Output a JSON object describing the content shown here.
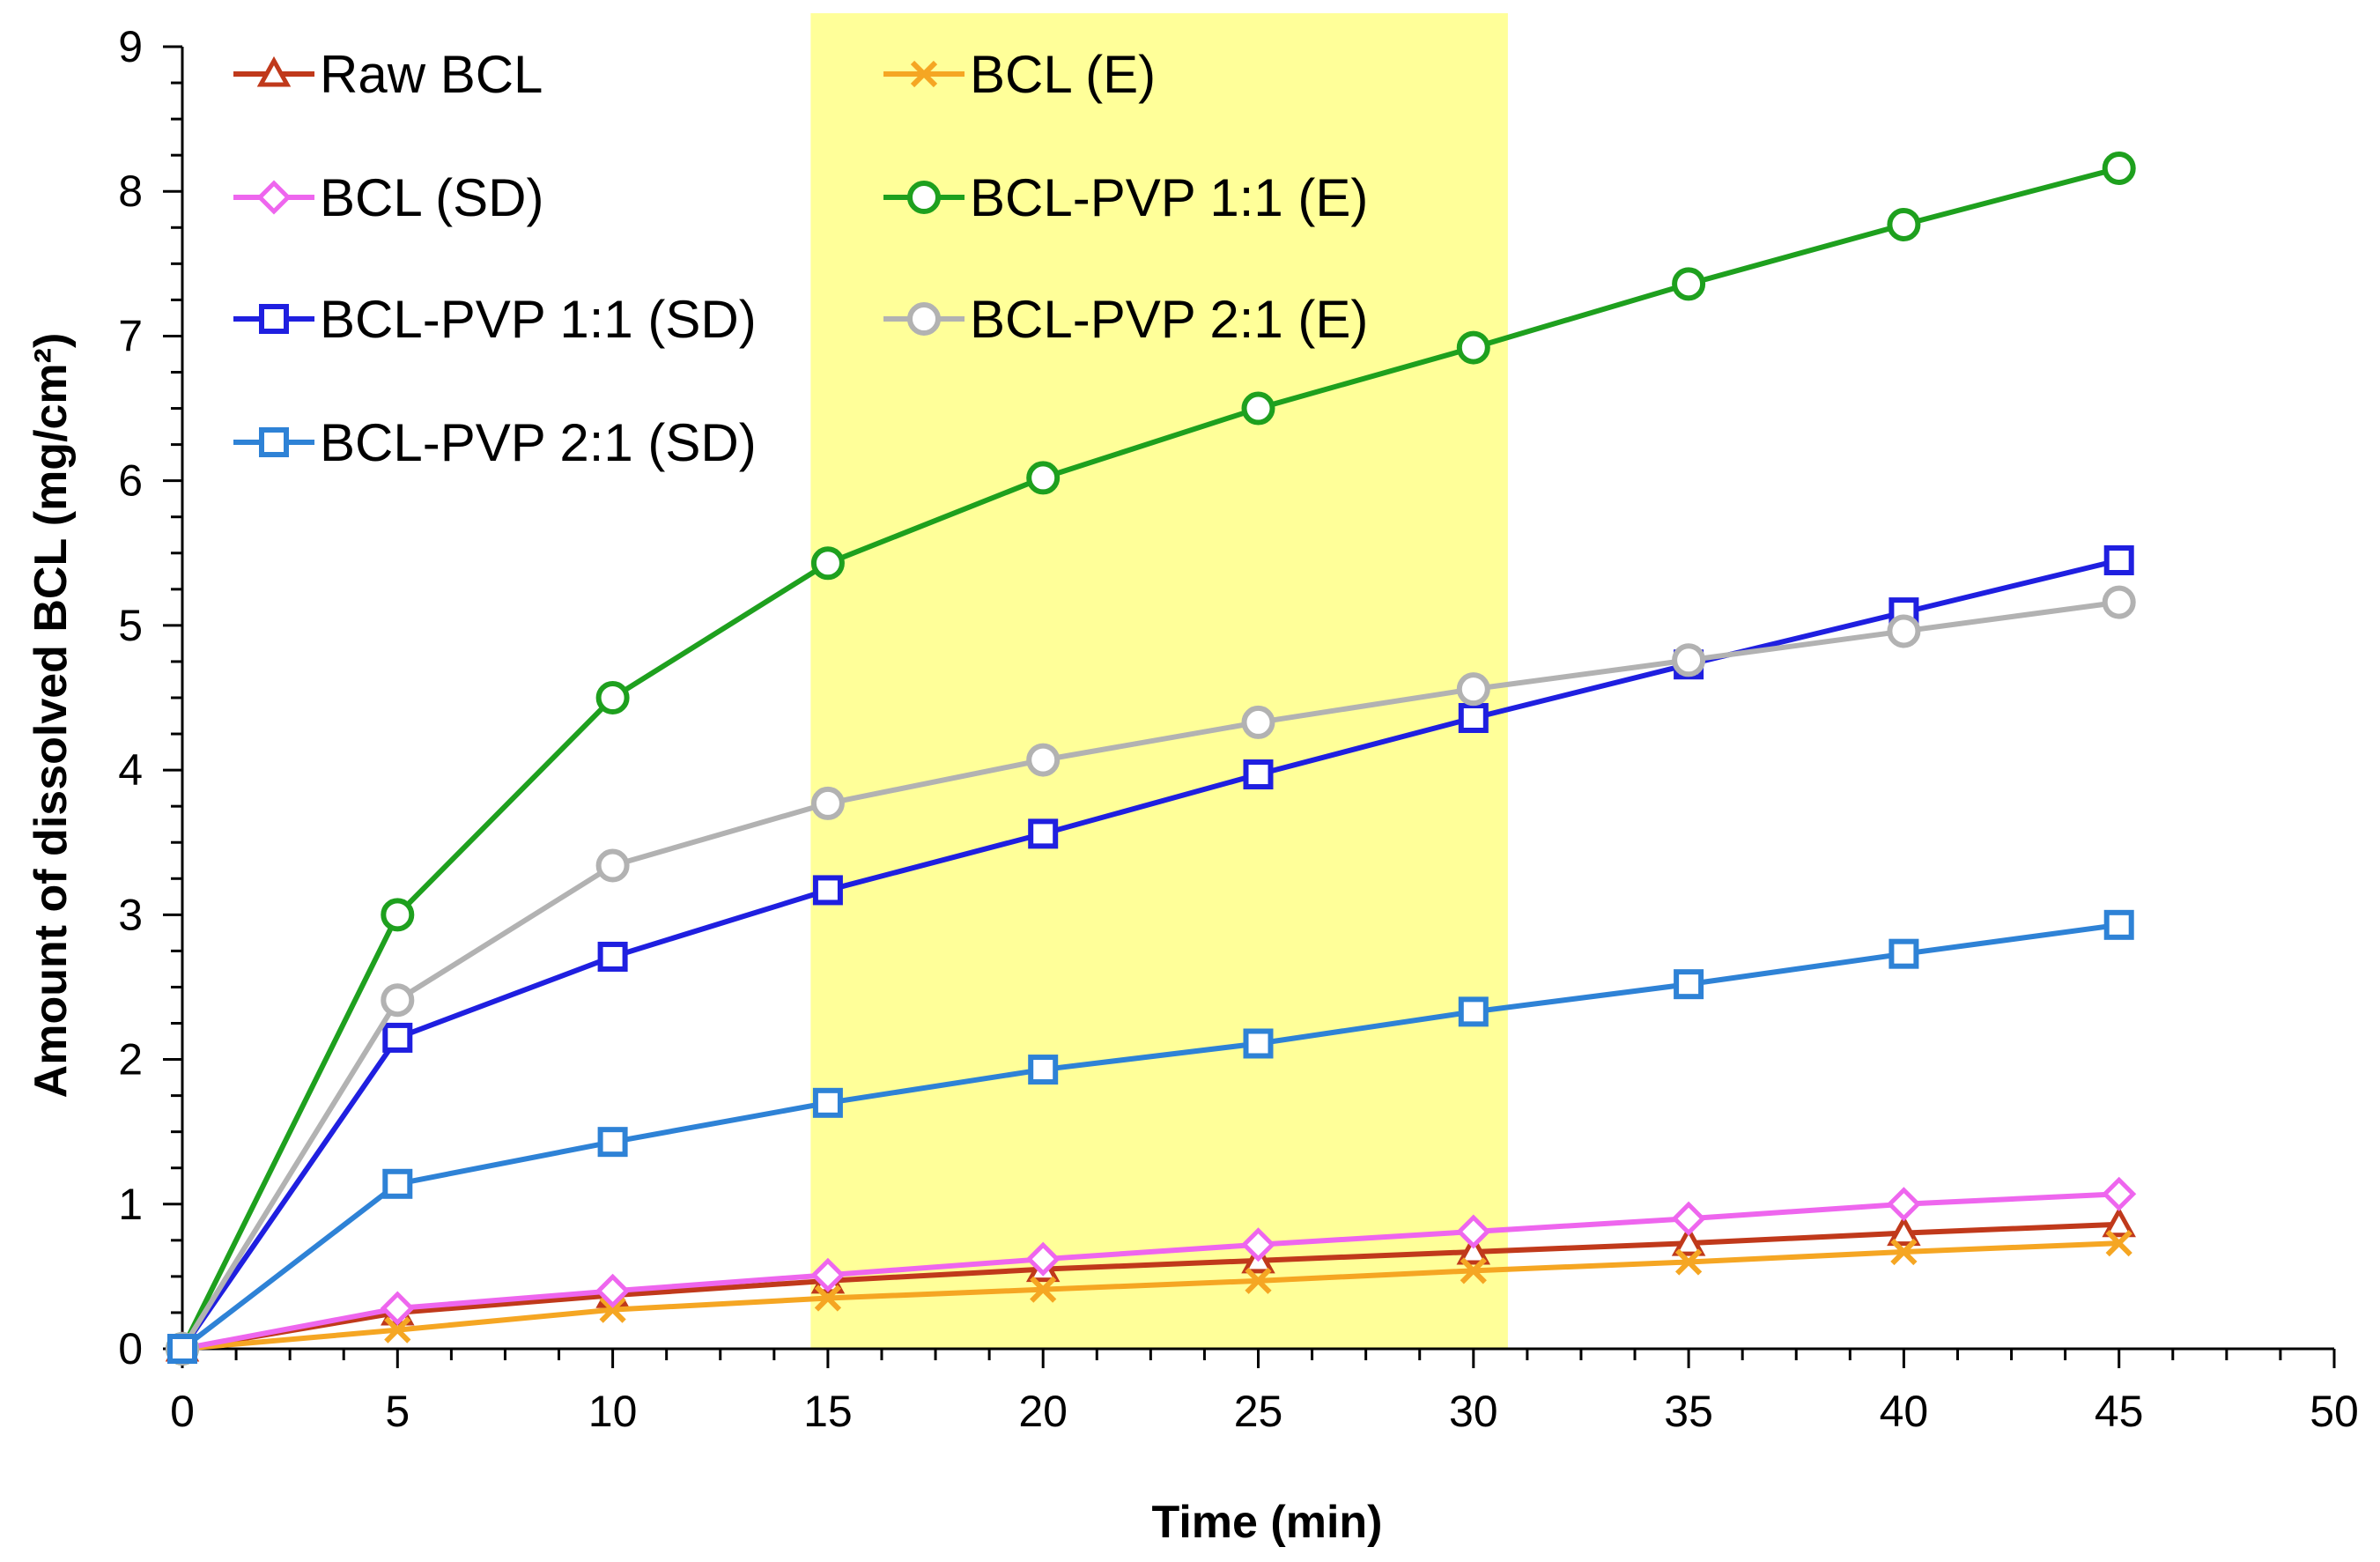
{
  "chart_data": {
    "type": "line",
    "title": "",
    "xlabel": "Time (min)",
    "ylabel": "Amount of dissolved BCL (mg/cm²)",
    "xlim": [
      0,
      50
    ],
    "ylim": [
      0,
      9
    ],
    "xticks": [
      "0",
      "5",
      "10",
      "15",
      "20",
      "25",
      "30",
      "35",
      "40",
      "45",
      "50"
    ],
    "yticks": [
      "0",
      "1",
      "2",
      "3",
      "4",
      "5",
      "6",
      "7",
      "8",
      "9"
    ],
    "grid": false,
    "highlight_region": {
      "x_from": 14.6,
      "x_to": 30.8,
      "color": "#ffff99"
    },
    "legend_position": "top-left, two columns",
    "x": [
      0,
      5,
      10,
      15,
      20,
      25,
      30,
      35,
      40,
      45
    ],
    "series": [
      {
        "name": "Raw BCL",
        "marker": "triangle",
        "color": "#c0391b",
        "values": [
          0,
          0.25,
          0.37,
          0.47,
          0.55,
          0.61,
          0.67,
          0.73,
          0.8,
          0.86
        ]
      },
      {
        "name": "BCL (E)",
        "marker": "x",
        "color": "#f5a623",
        "values": [
          0,
          0.13,
          0.27,
          0.35,
          0.41,
          0.47,
          0.54,
          0.6,
          0.67,
          0.73
        ]
      },
      {
        "name": "BCL (SD)",
        "marker": "diamond",
        "color": "#ee66ee",
        "values": [
          0,
          0.28,
          0.4,
          0.51,
          0.62,
          0.72,
          0.81,
          0.9,
          1.0,
          1.07
        ]
      },
      {
        "name": "BCL-PVP 1:1 (E)",
        "marker": "circle",
        "color": "#1ea01e",
        "values": [
          0,
          3.0,
          4.5,
          5.43,
          6.02,
          6.5,
          6.92,
          7.36,
          7.77,
          8.16
        ]
      },
      {
        "name": "BCL-PVP 1:1 (SD)",
        "marker": "square",
        "color": "#1f1fe0",
        "values": [
          0,
          2.15,
          2.71,
          3.17,
          3.56,
          3.97,
          4.36,
          4.73,
          5.09,
          5.45
        ]
      },
      {
        "name": "BCL-PVP 2:1 (E)",
        "marker": "circle",
        "color": "#b2b2b2",
        "values": [
          0,
          2.41,
          3.34,
          3.77,
          4.07,
          4.33,
          4.56,
          4.76,
          4.96,
          5.16
        ]
      },
      {
        "name": "BCL-PVP 2:1 (SD)",
        "marker": "square",
        "color": "#2e82d6",
        "values": [
          0,
          1.14,
          1.43,
          1.7,
          1.93,
          2.11,
          2.33,
          2.52,
          2.73,
          2.93
        ]
      }
    ]
  }
}
